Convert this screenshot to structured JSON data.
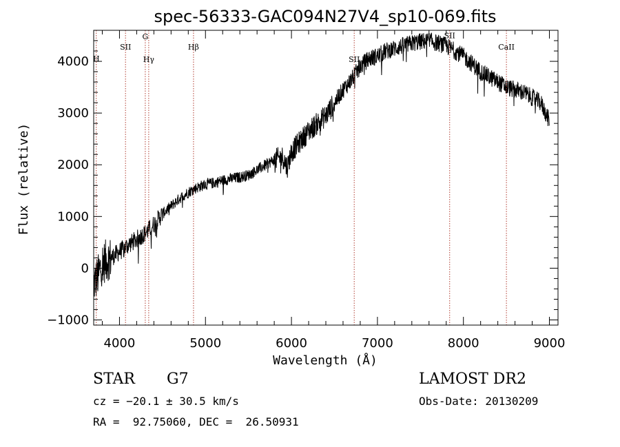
{
  "chart_data": {
    "type": "line",
    "title": "spec-56333-GAC094N27V4_sp10-069.fits",
    "xlabel": "Wavelength (Å)",
    "ylabel": "Flux (relative)",
    "xlim": [
      3700,
      9100
    ],
    "ylim": [
      -1100,
      4600
    ],
    "xticks": [
      4000,
      5000,
      6000,
      7000,
      8000,
      9000
    ],
    "yticks": [
      -1000,
      0,
      1000,
      2000,
      3000,
      4000
    ],
    "grid": false,
    "line_color": "#000000",
    "marker_color": "#b03a2e",
    "lines": [
      {
        "label": "H",
        "x": 3730,
        "label_y": 4000
      },
      {
        "label": "SII",
        "x": 4070,
        "label_y": 4230
      },
      {
        "label": "G",
        "x": 4300,
        "label_y": 4430
      },
      {
        "label": "Hγ",
        "x": 4340,
        "label_y": 3990
      },
      {
        "label": "Hβ",
        "x": 4861,
        "label_y": 4230
      },
      {
        "label": "SII",
        "x": 6730,
        "label_y": 3990
      },
      {
        "label": "SII",
        "x": 7840,
        "label_y": 4450
      },
      {
        "label": "CaII",
        "x": 8500,
        "label_y": 4230
      }
    ],
    "series": [
      {
        "x": [
          3700,
          3750,
          3800,
          3850,
          3900,
          3950,
          4000,
          4050,
          4100,
          4150,
          4200,
          4250,
          4300,
          4350,
          4400,
          4450,
          4500,
          4600,
          4700,
          4800,
          4900,
          5000,
          5100,
          5200,
          5300,
          5400,
          5500,
          5600,
          5700,
          5800,
          5900,
          5950,
          6000,
          6100,
          6200,
          6300,
          6400,
          6500,
          6600,
          6700,
          6800,
          6900,
          7000,
          7100,
          7200,
          7300,
          7400,
          7500,
          7600,
          7700,
          7800,
          7900,
          8000,
          8100,
          8200,
          8300,
          8400,
          8500,
          8600,
          8700,
          8800,
          8900,
          9000
        ],
        "y": [
          -300,
          -150,
          100,
          150,
          200,
          260,
          320,
          380,
          450,
          500,
          560,
          620,
          680,
          760,
          850,
          950,
          1050,
          1200,
          1350,
          1470,
          1560,
          1620,
          1650,
          1700,
          1730,
          1760,
          1800,
          1900,
          2000,
          2100,
          2150,
          1950,
          2250,
          2450,
          2650,
          2800,
          2950,
          3200,
          3450,
          3650,
          3900,
          4050,
          4100,
          4200,
          4250,
          4300,
          4350,
          4380,
          4400,
          4350,
          4300,
          4200,
          4100,
          3950,
          3800,
          3700,
          3600,
          3500,
          3450,
          3400,
          3300,
          3200,
          2850
        ]
      }
    ]
  },
  "footer": {
    "object_class": "STAR",
    "subclass": "G7",
    "survey": "LAMOST DR2",
    "redshift": "cz = −20.1 ± 30.5 km/s",
    "obs_date": "Obs-Date: 20130209",
    "coords": "RA =  92.75060, DEC =  26.50931"
  }
}
